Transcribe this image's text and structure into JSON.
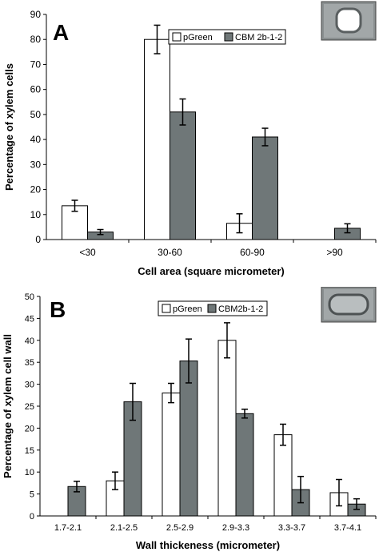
{
  "chart_data": [
    {
      "type": "bar",
      "panel_label": "A",
      "xlabel": "Cell area (square micrometer)",
      "ylabel": "Percentage of xylem cells",
      "categories": [
        "<30",
        "30-60",
        "60-90",
        ">90"
      ],
      "series": [
        {
          "name": "pGreen",
          "color": "#ffffff",
          "values": [
            13.5,
            80,
            6.5,
            0
          ],
          "errors": [
            2.2,
            5.7,
            3.8,
            0
          ],
          "show": [
            true,
            true,
            true,
            false
          ]
        },
        {
          "name": "CBM 2b-1-2",
          "color": "#6f7778",
          "values": [
            3,
            51,
            41,
            4.5
          ],
          "errors": [
            1,
            5.2,
            3.5,
            1.8
          ],
          "show": [
            true,
            true,
            true,
            true
          ]
        }
      ],
      "ylim": [
        0,
        90
      ],
      "yticks": [
        0,
        10,
        20,
        30,
        40,
        50,
        60,
        70,
        80,
        90
      ],
      "legend_position": "top-right",
      "inset": "micrograph-cell-area"
    },
    {
      "type": "bar",
      "panel_label": "B",
      "xlabel": "Wall thickeness (micrometer)",
      "ylabel": "Percentage of xylem cell wall",
      "categories": [
        "1.7-2.1",
        "2.1-2.5",
        "2.5-2.9",
        "2.9-3.3",
        "3.3-3.7",
        "3.7-4.1"
      ],
      "series": [
        {
          "name": "pGreen",
          "color": "#ffffff",
          "values": [
            0,
            8,
            28,
            40,
            18.5,
            5.3
          ],
          "errors": [
            0,
            2,
            2.2,
            4,
            2.4,
            3
          ],
          "show": [
            false,
            true,
            true,
            true,
            true,
            true
          ]
        },
        {
          "name": "CBM2b-1-2",
          "color": "#6f7778",
          "values": [
            6.7,
            26,
            35.3,
            23.3,
            6,
            2.7
          ],
          "errors": [
            1.2,
            4.2,
            5,
            1,
            3,
            1.2
          ],
          "show": [
            true,
            true,
            true,
            true,
            true,
            true
          ]
        }
      ],
      "ylim": [
        0,
        50
      ],
      "yticks": [
        0,
        5,
        10,
        15,
        20,
        25,
        30,
        35,
        40,
        45,
        50
      ],
      "legend_position": "top-center",
      "inset": "micrograph-wall-thickness"
    }
  ]
}
